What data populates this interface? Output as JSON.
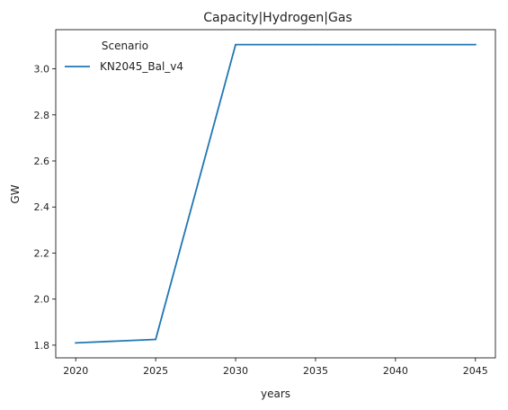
{
  "chart_data": {
    "type": "line",
    "title": "Capacity|Hydrogen|Gas",
    "xlabel": "years",
    "ylabel": "GW",
    "x": [
      2020,
      2025,
      2030,
      2035,
      2040,
      2045
    ],
    "xticks": [
      "2020",
      "2025",
      "2030",
      "2035",
      "2040",
      "2045"
    ],
    "yticks": [
      "1.8",
      "2.0",
      "2.2",
      "2.4",
      "2.6",
      "2.8",
      "3.0"
    ],
    "xlim": [
      2018.75,
      2046.25
    ],
    "ylim": [
      1.745,
      3.17
    ],
    "grid": false,
    "legend": {
      "title": "Scenario",
      "placement": "top-left"
    },
    "series": [
      {
        "name": "KN2045_Bal_v4",
        "color": "#1f77b4",
        "values": [
          1.81,
          1.825,
          3.105,
          3.105,
          3.105,
          3.105
        ]
      }
    ]
  }
}
